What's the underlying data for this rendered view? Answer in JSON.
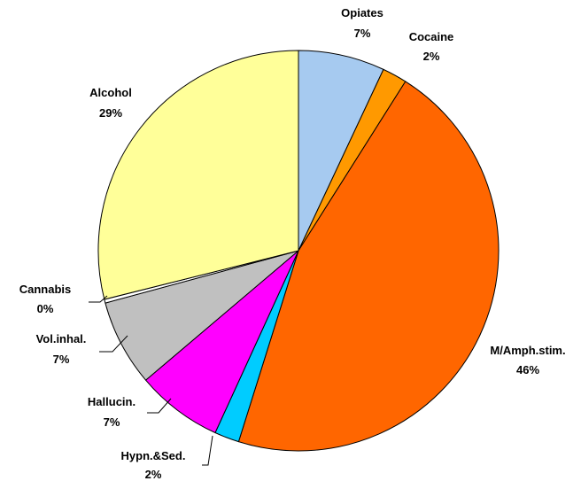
{
  "chart_data": {
    "type": "pie",
    "title": "",
    "slices": [
      {
        "label": "Opiates",
        "percent_label": "7%",
        "value": 7,
        "color": "#A6CAF0"
      },
      {
        "label": "Cocaine",
        "percent_label": "2%",
        "value": 2,
        "color": "#FF9900"
      },
      {
        "label": "M/Amph.stim.",
        "percent_label": "46%",
        "value": 46,
        "color": "#FF6600"
      },
      {
        "label": "Hypn.&Sed.",
        "percent_label": "2%",
        "value": 2,
        "color": "#00CCFF"
      },
      {
        "label": "Hallucin.",
        "percent_label": "7%",
        "value": 7,
        "color": "#FF00FF"
      },
      {
        "label": "Vol.inhal.",
        "percent_label": "7%",
        "value": 7,
        "color": "#C0C0C0"
      },
      {
        "label": "Cannabis",
        "percent_label": "0%",
        "value": 0.3,
        "color": "#FFFFFF"
      },
      {
        "label": "Alcohol",
        "percent_label": "29%",
        "value": 29,
        "color": "#FFFF99"
      }
    ],
    "start": "12 o'clock",
    "direction": "clockwise",
    "legend": "none",
    "data_labels": "category name and percentage"
  }
}
